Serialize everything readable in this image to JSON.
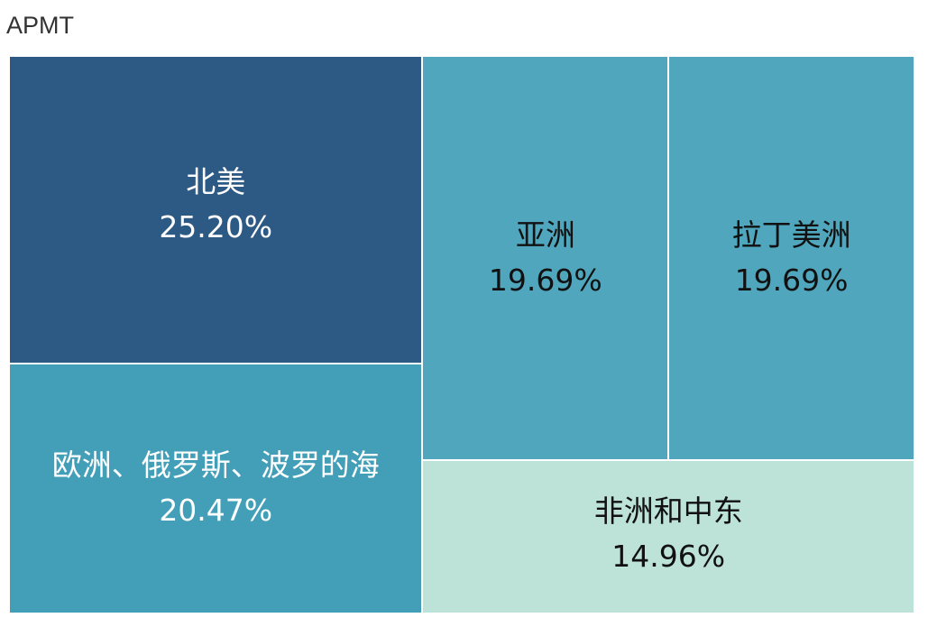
{
  "chart_data": {
    "type": "treemap",
    "title": "APMT",
    "items": [
      {
        "name": "北美",
        "value": 25.2,
        "label": "25.20%",
        "color": "#2d5985",
        "text_color": "#ffffff"
      },
      {
        "name": "欧洲、俄罗斯、波罗的海",
        "value": 20.47,
        "label": "20.47%",
        "color": "#439fb8",
        "text_color": "#ffffff"
      },
      {
        "name": "亚洲",
        "value": 19.69,
        "label": "19.69%",
        "color": "#50a6bd",
        "text_color": "#111111"
      },
      {
        "name": "拉丁美洲",
        "value": 19.69,
        "label": "19.69%",
        "color": "#50a6bd",
        "text_color": "#111111"
      },
      {
        "name": "非洲和中东",
        "value": 14.96,
        "label": "14.96%",
        "color": "#bde3d9",
        "text_color": "#111111"
      }
    ]
  }
}
